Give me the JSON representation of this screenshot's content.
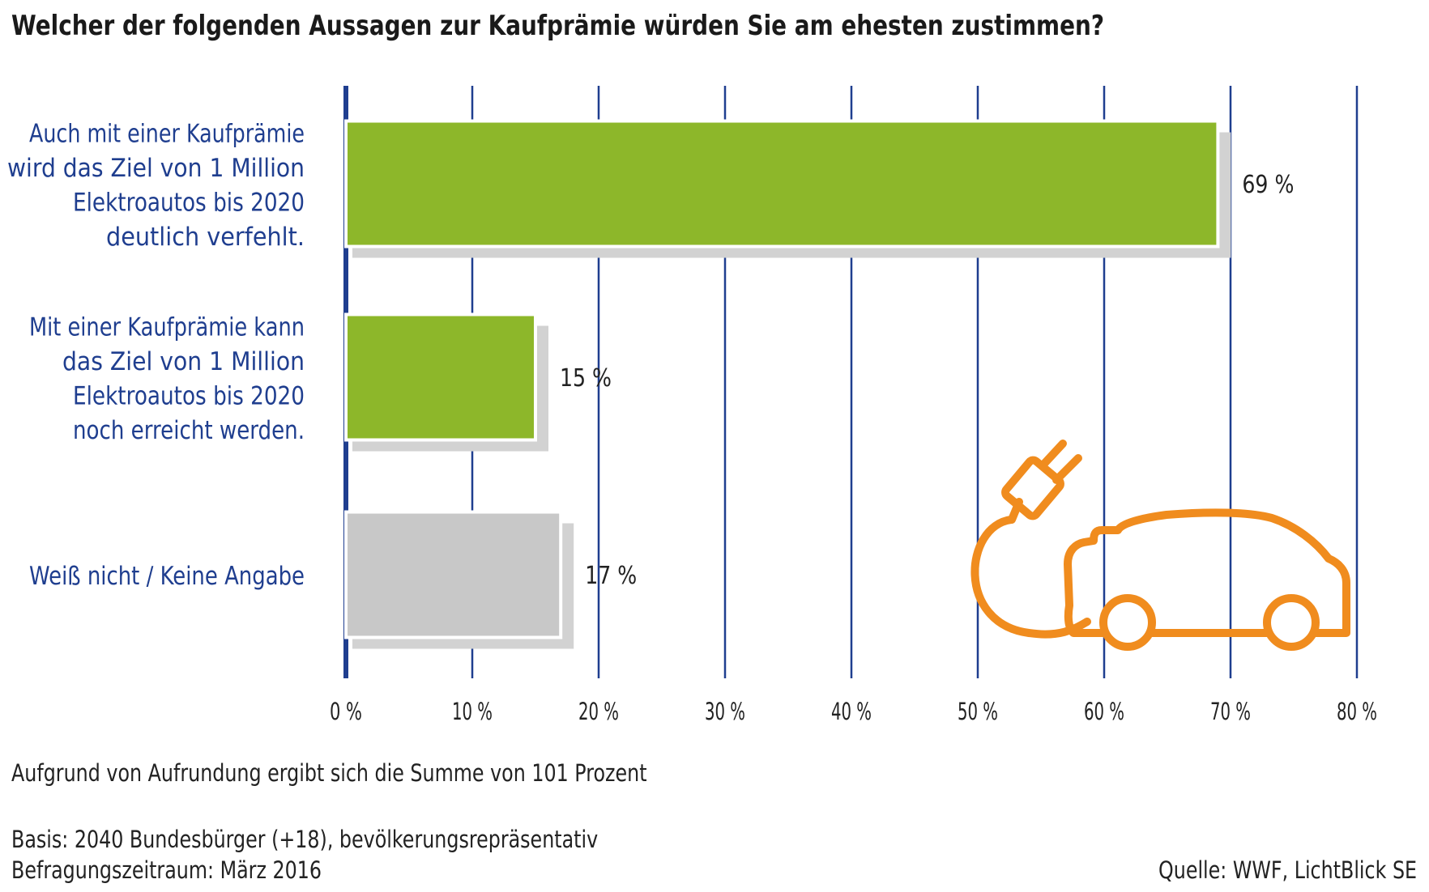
{
  "chart_data": {
    "type": "bar",
    "orientation": "horizontal",
    "title": "Welcher der folgenden Aussagen zur Kaufprämie würden Sie am ehesten zustimmen?",
    "categories": [
      [
        "Auch mit einer Kaufprämie",
        "wird das Ziel von 1 Million",
        "Elektroautos bis 2020",
        "deutlich verfehlt."
      ],
      [
        "Mit einer Kaufprämie kann",
        "das Ziel von 1 Million",
        "Elektroautos bis 2020",
        "noch erreicht werden."
      ],
      [
        "Weiß nicht / Keine Angabe"
      ]
    ],
    "values": [
      69,
      15,
      17
    ],
    "value_labels": [
      "69 %",
      "15 %",
      "17 %"
    ],
    "bar_colors": [
      "#8db72a",
      "#8db72a",
      "#c8c8c8"
    ],
    "xlim": [
      0,
      80
    ],
    "xticks": [
      0,
      10,
      20,
      30,
      40,
      50,
      60,
      70,
      80
    ],
    "xtick_labels": [
      "0 %",
      "10 %",
      "20 %",
      "30 %",
      "40 %",
      "50 %",
      "60 %",
      "70 %",
      "80 %"
    ],
    "grid": "vertical",
    "gridline_color": "#1f3e8f",
    "category_label_color": "#1f3e8f",
    "shadow_color": "#d2d2d2",
    "illustration_icon": "electric-car-plug-icon",
    "illustration_color": "#f08c1e"
  },
  "footnotes": {
    "rounding": "Aufgrund von Aufrundung ergibt sich die Summe von 101 Prozent",
    "basis": "Basis: 2040 Bundesbürger (+18), bevölkerungsrepräsentativ",
    "period": "Befragungszeitraum: März 2016",
    "source": "Quelle: WWF, LichtBlick SE"
  }
}
